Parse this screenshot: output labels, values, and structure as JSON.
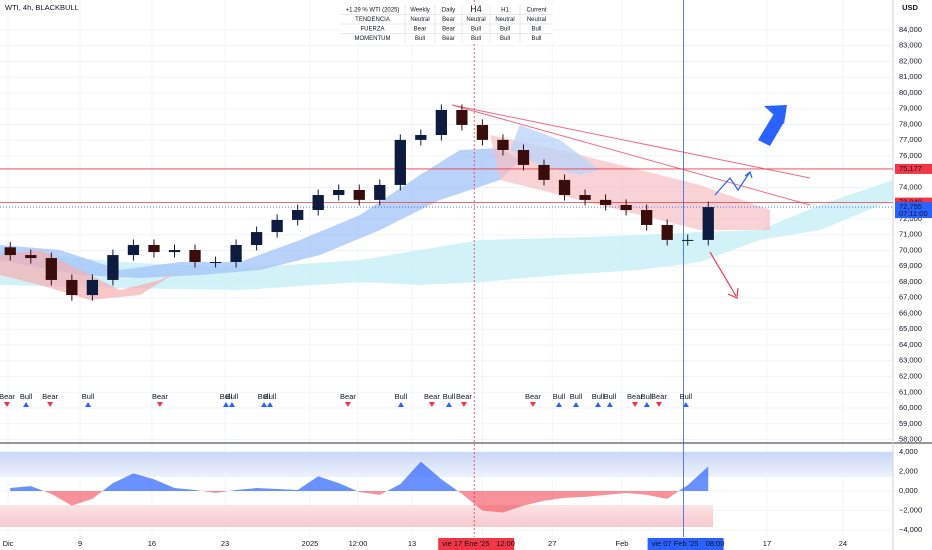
{
  "chart_data": {
    "type": "candlestick",
    "title": "WTI, 4h, BLACKBULL",
    "currency": "USD",
    "up_color": "#0d1b3e",
    "down_color": "#3a0d0d",
    "xlim": [
      -0.5,
      43
    ],
    "xticks": [
      {
        "value": -0.11,
        "label": "Dic"
      },
      {
        "value": 3.4,
        "label": "9"
      },
      {
        "value": 6.9,
        "label": "16"
      },
      {
        "value": 10.46,
        "label": "23"
      },
      {
        "value": 14.6,
        "label": "2025"
      },
      {
        "value": 16.94,
        "label": "12:00"
      },
      {
        "value": 19.57,
        "label": "13"
      },
      {
        "value": 23.0,
        "label": "20"
      },
      {
        "value": 26.4,
        "label": "27"
      },
      {
        "value": 29.8,
        "label": "Feb"
      },
      {
        "value": 36.86,
        "label": "17"
      },
      {
        "value": 40.56,
        "label": "24"
      }
    ],
    "ylim": [
      57780,
      85900
    ],
    "yticks": [
      {
        "value": 58000,
        "label": "58,000"
      },
      {
        "value": 59000,
        "label": "59,000"
      },
      {
        "value": 60000,
        "label": "60,000"
      },
      {
        "value": 61000,
        "label": "61,000"
      },
      {
        "value": 62000,
        "label": "62,000"
      },
      {
        "value": 63000,
        "label": "63,000"
      },
      {
        "value": 64000,
        "label": "64,000"
      },
      {
        "value": 65000,
        "label": "65,000"
      },
      {
        "value": 66000,
        "label": "66,000"
      },
      {
        "value": 67000,
        "label": "67,000"
      },
      {
        "value": 68000,
        "label": "68,000"
      },
      {
        "value": 69000,
        "label": "69,000"
      },
      {
        "value": 70000,
        "label": "70,000"
      },
      {
        "value": 71000,
        "label": "71,000"
      },
      {
        "value": 72000,
        "label": "72,000"
      },
      {
        "value": 74000,
        "label": "74,000"
      },
      {
        "value": 76000,
        "label": "76,000"
      },
      {
        "value": 77000,
        "label": "77,000"
      },
      {
        "value": 78000,
        "label": "78,000"
      },
      {
        "value": 79000,
        "label": "79,000"
      },
      {
        "value": 80000,
        "label": "80,000"
      },
      {
        "value": 81000,
        "label": "81,000"
      },
      {
        "value": 82000,
        "label": "82,000"
      },
      {
        "value": 83000,
        "label": "83,000"
      },
      {
        "value": 84000,
        "label": "84,000"
      }
    ],
    "price_levels": [
      {
        "value": 75177,
        "label": "75,177",
        "color": "#f23645"
      },
      {
        "value": 73040,
        "label": "73,040",
        "color": "#f23645"
      },
      {
        "value": 72755,
        "label": "72,755",
        "color": "#2962ff"
      }
    ],
    "countdown": "07:11:00",
    "markers": [
      {
        "x": 22.6,
        "label": "vie 17 Ene '25",
        "time": "12:00",
        "color": "#f23645"
      },
      {
        "x": 32.8,
        "label": "vie 07 Feb '25",
        "time": "08:00",
        "color": "#2962ff"
      }
    ],
    "open": [
      70200,
      69710,
      69520,
      68130,
      67170,
      68130,
      69710,
      70350,
      69900,
      70030,
      69270,
      69270,
      70350,
      71170,
      71940,
      72570,
      73520,
      73840,
      73210,
      74160,
      77020,
      77330,
      78920,
      77970,
      77020,
      76380,
      75430,
      74480,
      73520,
      73210,
      72890,
      72570,
      71620,
      70670,
      70670
    ],
    "high": [
      70550,
      70060,
      69870,
      68480,
      68480,
      70060,
      70700,
      70700,
      70380,
      70380,
      69620,
      70700,
      71520,
      72290,
      72920,
      73870,
      74190,
      74190,
      74510,
      77370,
      77680,
      79270,
      79270,
      78320,
      77370,
      76730,
      75780,
      74830,
      73870,
      73560,
      73240,
      72920,
      71970,
      71020,
      73105
    ],
    "low": [
      69360,
      69170,
      67780,
      66820,
      66820,
      67780,
      69360,
      69550,
      69550,
      68920,
      68920,
      68920,
      70000,
      70820,
      71590,
      72220,
      73170,
      72860,
      72860,
      73810,
      76670,
      76980,
      77620,
      76670,
      76030,
      75080,
      74130,
      73170,
      72860,
      72540,
      72220,
      71270,
      70320,
      70320,
      70320
    ],
    "close": [
      69710,
      69520,
      68130,
      67170,
      68130,
      69710,
      70350,
      69900,
      70030,
      69270,
      69270,
      70350,
      71170,
      71940,
      72570,
      73520,
      73840,
      73210,
      74160,
      77020,
      77330,
      78920,
      77970,
      77020,
      76380,
      75430,
      74480,
      73520,
      73210,
      72890,
      72570,
      71620,
      70670,
      70670,
      72755
    ],
    "signals": [
      {
        "x": -0.16,
        "label": "Bear",
        "color": "#f23645"
      },
      {
        "x": 0.77,
        "label": "Bull",
        "color": "#2962ff"
      },
      {
        "x": 1.94,
        "label": "Bear",
        "color": "#f23645"
      },
      {
        "x": 3.79,
        "label": "Bull",
        "color": "#2962ff"
      },
      {
        "x": 7.29,
        "label": "Bear",
        "color": "#f23645"
      },
      {
        "x": 10.51,
        "label": "Bull",
        "color": "#2962ff"
      },
      {
        "x": 10.8,
        "label": "Bull",
        "color": "#2962ff"
      },
      {
        "x": 12.36,
        "label": "Bull",
        "color": "#2962ff"
      },
      {
        "x": 12.65,
        "label": "Bull",
        "color": "#2962ff"
      },
      {
        "x": 16.45,
        "label": "Bear",
        "color": "#f23645"
      },
      {
        "x": 19.03,
        "label": "Bull",
        "color": "#2962ff"
      },
      {
        "x": 20.54,
        "label": "Bear",
        "color": "#f23645"
      },
      {
        "x": 21.37,
        "label": "Bull",
        "color": "#2962ff"
      },
      {
        "x": 22.1,
        "label": "Bear",
        "color": "#f23645"
      },
      {
        "x": 25.46,
        "label": "Bear",
        "color": "#f23645"
      },
      {
        "x": 26.73,
        "label": "Bull",
        "color": "#2962ff"
      },
      {
        "x": 27.56,
        "label": "Bull",
        "color": "#2962ff"
      },
      {
        "x": 28.63,
        "label": "Bull",
        "color": "#2962ff"
      },
      {
        "x": 29.21,
        "label": "Bull",
        "color": "#2962ff"
      },
      {
        "x": 30.43,
        "label": "Bear",
        "color": "#f23645"
      },
      {
        "x": 31.01,
        "label": "Bull",
        "color": "#2962ff"
      },
      {
        "x": 31.6,
        "label": "Bear",
        "color": "#f23645"
      },
      {
        "x": 32.91,
        "label": "Bull",
        "color": "#2962ff"
      }
    ],
    "oscillator": {
      "ylim": [
        -4700,
        4900
      ],
      "yticks": [
        {
          "value": 4000,
          "label": "4,000"
        },
        {
          "value": 2000,
          "label": "2,000"
        },
        {
          "value": 0,
          "label": "0,000"
        },
        {
          "value": -2000,
          "label": "−2,000"
        },
        {
          "value": -4000,
          "label": "−4,000"
        }
      ],
      "positive_color": "#2962ff",
      "negative_color": "#f23645",
      "values": [
        300,
        500,
        -300,
        -1500,
        -800,
        800,
        1800,
        1200,
        300,
        100,
        -200,
        100,
        300,
        200,
        100,
        1500,
        800,
        -100,
        -400,
        700,
        3000,
        1200,
        -300,
        -2000,
        -2200,
        -1500,
        -1000,
        -700,
        -600,
        -400,
        -200,
        -400,
        -800,
        600,
        2500
      ]
    }
  },
  "table": {
    "header": [
      {
        "text": "+1.29 % WTI (2025)",
        "color": "#2962ff"
      },
      {
        "text": "Weekly",
        "color": "#131722"
      },
      {
        "text": "Daily",
        "color": "#131722"
      },
      {
        "text": "H4",
        "color": "#2962ff"
      },
      {
        "text": "H1",
        "color": "#131722"
      },
      {
        "text": "Current",
        "color": "#131722"
      }
    ],
    "rows": [
      {
        "label": "TENDENCIA",
        "cells": [
          {
            "text": "Neutral",
            "color": "#f5a623"
          },
          {
            "text": "Bear",
            "color": "#f23645"
          },
          {
            "text": "Neutral",
            "color": "#f5a623"
          },
          {
            "text": "Neutral",
            "color": "#f5a623"
          },
          {
            "text": "Neutral",
            "color": "#f5a623"
          }
        ]
      },
      {
        "label": "FUERZA",
        "cells": [
          {
            "text": "Bear",
            "color": "#f23645"
          },
          {
            "text": "Bear",
            "color": "#f23645"
          },
          {
            "text": "Bull",
            "color": "#2962ff"
          },
          {
            "text": "Bull",
            "color": "#2962ff"
          },
          {
            "text": "Bull",
            "color": "#2962ff"
          }
        ]
      },
      {
        "label": "MOMENTUM",
        "cells": [
          {
            "text": "Bull",
            "color": "#2962ff"
          },
          {
            "text": "Bear",
            "color": "#f23645"
          },
          {
            "text": "Bull",
            "color": "#2962ff"
          },
          {
            "text": "Bull",
            "color": "#2962ff"
          },
          {
            "text": "Bull",
            "color": "#2962ff"
          }
        ]
      }
    ]
  }
}
